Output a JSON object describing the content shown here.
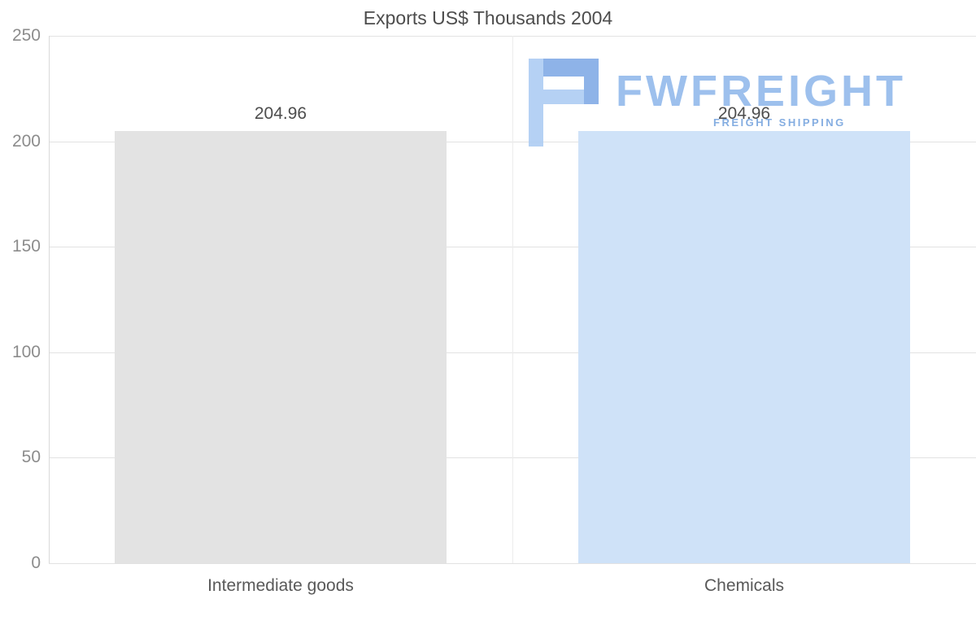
{
  "chart_data": {
    "type": "bar",
    "title": "Exports US$ Thousands 2004",
    "categories": [
      "Intermediate goods",
      "Chemicals"
    ],
    "values": [
      204.96,
      204.96
    ],
    "value_labels": [
      "204.96",
      "204.96"
    ],
    "series_colors": [
      "#e3e3e3",
      "#cfe2f8"
    ],
    "ylim": [
      0,
      250
    ],
    "yticks": [
      250,
      200,
      150,
      100,
      50,
      0
    ],
    "ytick_labels": [
      "250",
      "200",
      "150",
      "100",
      "50",
      "0"
    ],
    "xlabel": "",
    "ylabel": "",
    "grid": "horizontal",
    "legend": "none"
  },
  "watermark": {
    "brand": "FWFREIGHT",
    "tagline": "FREIGHT SHIPPING",
    "brand_color": "#95bbec",
    "icon_color_dark": "#82abe6",
    "icon_color_light": "#aecdf3"
  }
}
